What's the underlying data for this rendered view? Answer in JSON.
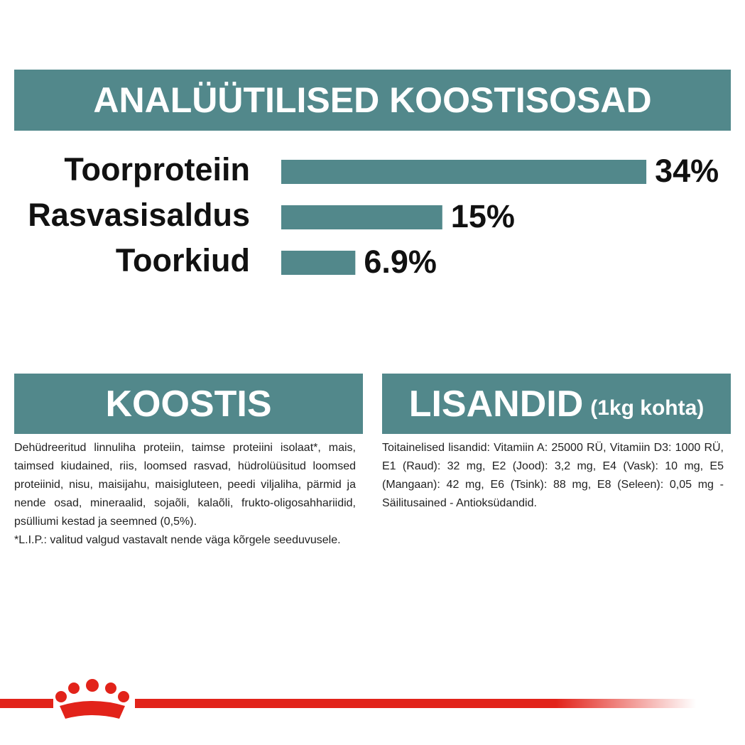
{
  "header": {
    "title": "ANALÜÜTILISED KOOSTISOSAD"
  },
  "chart_data": {
    "type": "bar",
    "categories": [
      "Toorproteiin",
      "Rasvasisaldus",
      "Toorkiud"
    ],
    "values": [
      34,
      15,
      6.9
    ],
    "value_labels": [
      "34%",
      "15%",
      "6.9%"
    ],
    "color": "#52888b"
  },
  "composition": {
    "title": "KOOSTIS",
    "text": "Dehüdreeritud linnuliha proteiin, taimse proteiini isolaat*, mais, taimsed kiudained, riis, loomsed rasvad, hüdrolüüsitud loomsed proteiinid, nisu, maisijahu, maisigluteen, peedi viljaliha, pärmid ja nende osad, mineraalid, sojaõli, kalaõli, frukto-oligosahhariidid, psülliumi kestad ja seemned (0,5%).",
    "note": "*L.I.P.: valitud valgud vastavalt nende väga kõrgele seeduvusele."
  },
  "additives": {
    "title": "LISANDID",
    "subtitle": "(1kg kohta)",
    "text": "Toitainelised lisandid: Vitamiin A: 25000 RÜ, Vitamiin D3: 1000 RÜ, E1 (Raud): 32 mg, E2 (Jood): 3,2 mg, E4 (Vask): 10 mg, E5 (Mangaan): 42 mg, E6 (Tsink): 88 mg, E8 (Seleen): 0,05 mg - Säilitusained - Antioksüdandid."
  }
}
